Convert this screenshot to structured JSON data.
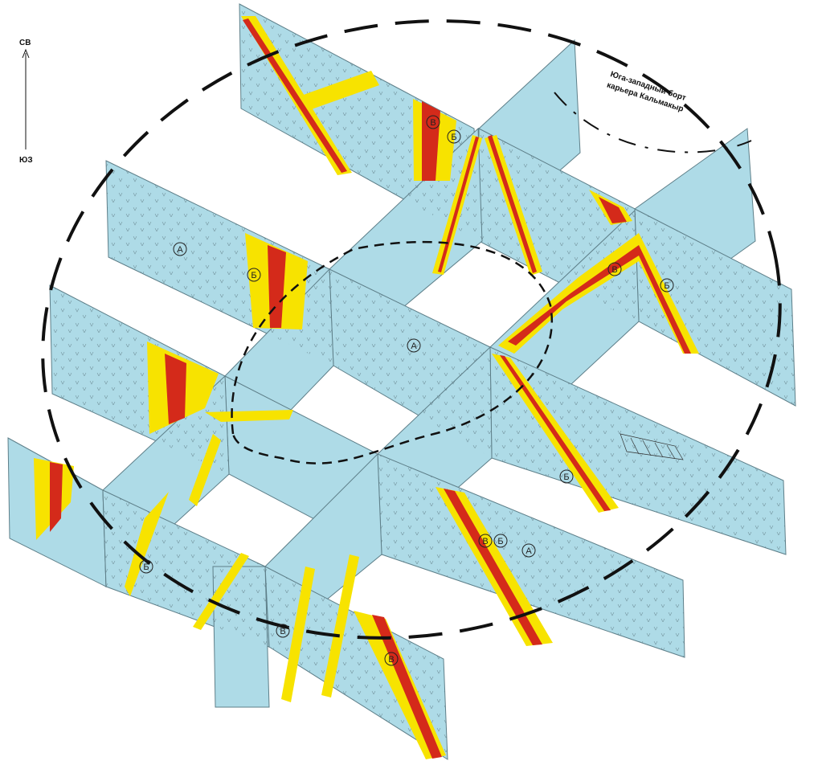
{
  "compass": {
    "north": "СВ",
    "south": "ЮЗ"
  },
  "annotation": {
    "line1": "Юга-западный борт",
    "line2": "карьера Кальмакыр"
  },
  "zone_labels": {
    "a1": "А",
    "a2": "А",
    "a3": "А",
    "b1": "Б",
    "b2": "Б",
    "b3": "Б",
    "b4": "Б",
    "b5": "Б",
    "b6": "Б",
    "v1": "В",
    "v2": "В",
    "v3": "В",
    "v4": "В",
    "v5": "В"
  },
  "colors": {
    "host_rock": "#aedbe7",
    "zone_b": "#f7e300",
    "zone_v": "#d42a1a",
    "outline": "#5e7f89",
    "contour": "#111111"
  }
}
